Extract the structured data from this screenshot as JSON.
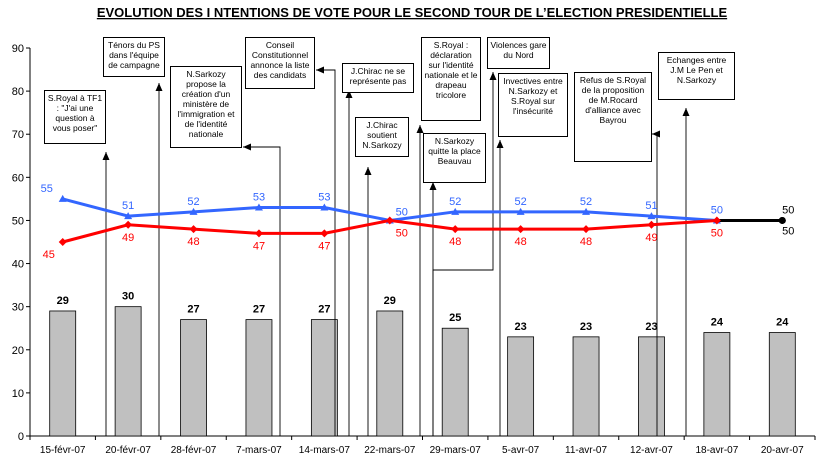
{
  "chart_data": {
    "type": "bar",
    "title": "EVOLUTION DES I NTENTIONS DE VOTE POUR LE SECOND TOUR DE L’ELECTION PRESIDENTIELLE",
    "categories": [
      "15-févr-07",
      "20-févr-07",
      "28-févr-07",
      "7-mars-07",
      "14-mars-07",
      "22-mars-07",
      "29-mars-07",
      "5-avr-07",
      "11-avr-07",
      "12-avr-07",
      "18-avr-07",
      "20-avr-07"
    ],
    "ylim": [
      0,
      90
    ],
    "yticks": [
      0,
      10,
      20,
      30,
      40,
      50,
      60,
      70,
      80,
      90
    ],
    "grid": false,
    "bars": {
      "values": [
        29,
        30,
        27,
        27,
        27,
        29,
        25,
        23,
        23,
        23,
        24,
        24
      ],
      "color": "#c0c0c0"
    },
    "series": [
      {
        "values": [
          55,
          51,
          52,
          53,
          53,
          50,
          52,
          52,
          52,
          51,
          50,
          50
        ],
        "color": "#3366ff",
        "marker": "triangle"
      },
      {
        "values": [
          45,
          49,
          48,
          47,
          47,
          50,
          48,
          48,
          48,
          49,
          50,
          50
        ],
        "color": "#ff0000",
        "marker": "diamond"
      }
    ],
    "final_segment": {
      "color": "#000000"
    },
    "annotations": [
      {
        "text": "S.Royal à TF1 : \"J'ai une question à vous poser\"",
        "arrow_x": 1
      },
      {
        "text": "Ténors du PS dans l'équipe de campagne",
        "arrow_x": 2
      },
      {
        "text": "N.Sarkozy propose la création d'un ministère de l'immigration et de l'identité nationale",
        "arrow_x": 3
      },
      {
        "text": "Conseil Constitutionnel annonce la liste des candidats",
        "arrow_x": 4
      },
      {
        "text": "J.Chirac ne se représente pas",
        "arrow_x": 5
      },
      {
        "text": "J.Chirac soutient N.Sarkozy",
        "arrow_x": 5.2
      },
      {
        "text": "S.Royal : déclaration sur l'identité nationale et le drapeau tricolore",
        "arrow_x": 6
      },
      {
        "text": "N.Sarkozy quitte la place Beauvau",
        "arrow_x": 6.2
      },
      {
        "text": "Violences gare du Nord",
        "arrow_x": 7
      },
      {
        "text": "Invectives entre N.Sarkozy et S.Royal sur l'insécurité",
        "arrow_x": 7.2
      },
      {
        "text": "Refus de S.Royal de la proposition de M.Rocard d'alliance avec Bayrou",
        "arrow_x": 9
      },
      {
        "text": "Echanges entre J.M Le Pen et N.Sarkozy",
        "arrow_x": 10
      }
    ]
  }
}
